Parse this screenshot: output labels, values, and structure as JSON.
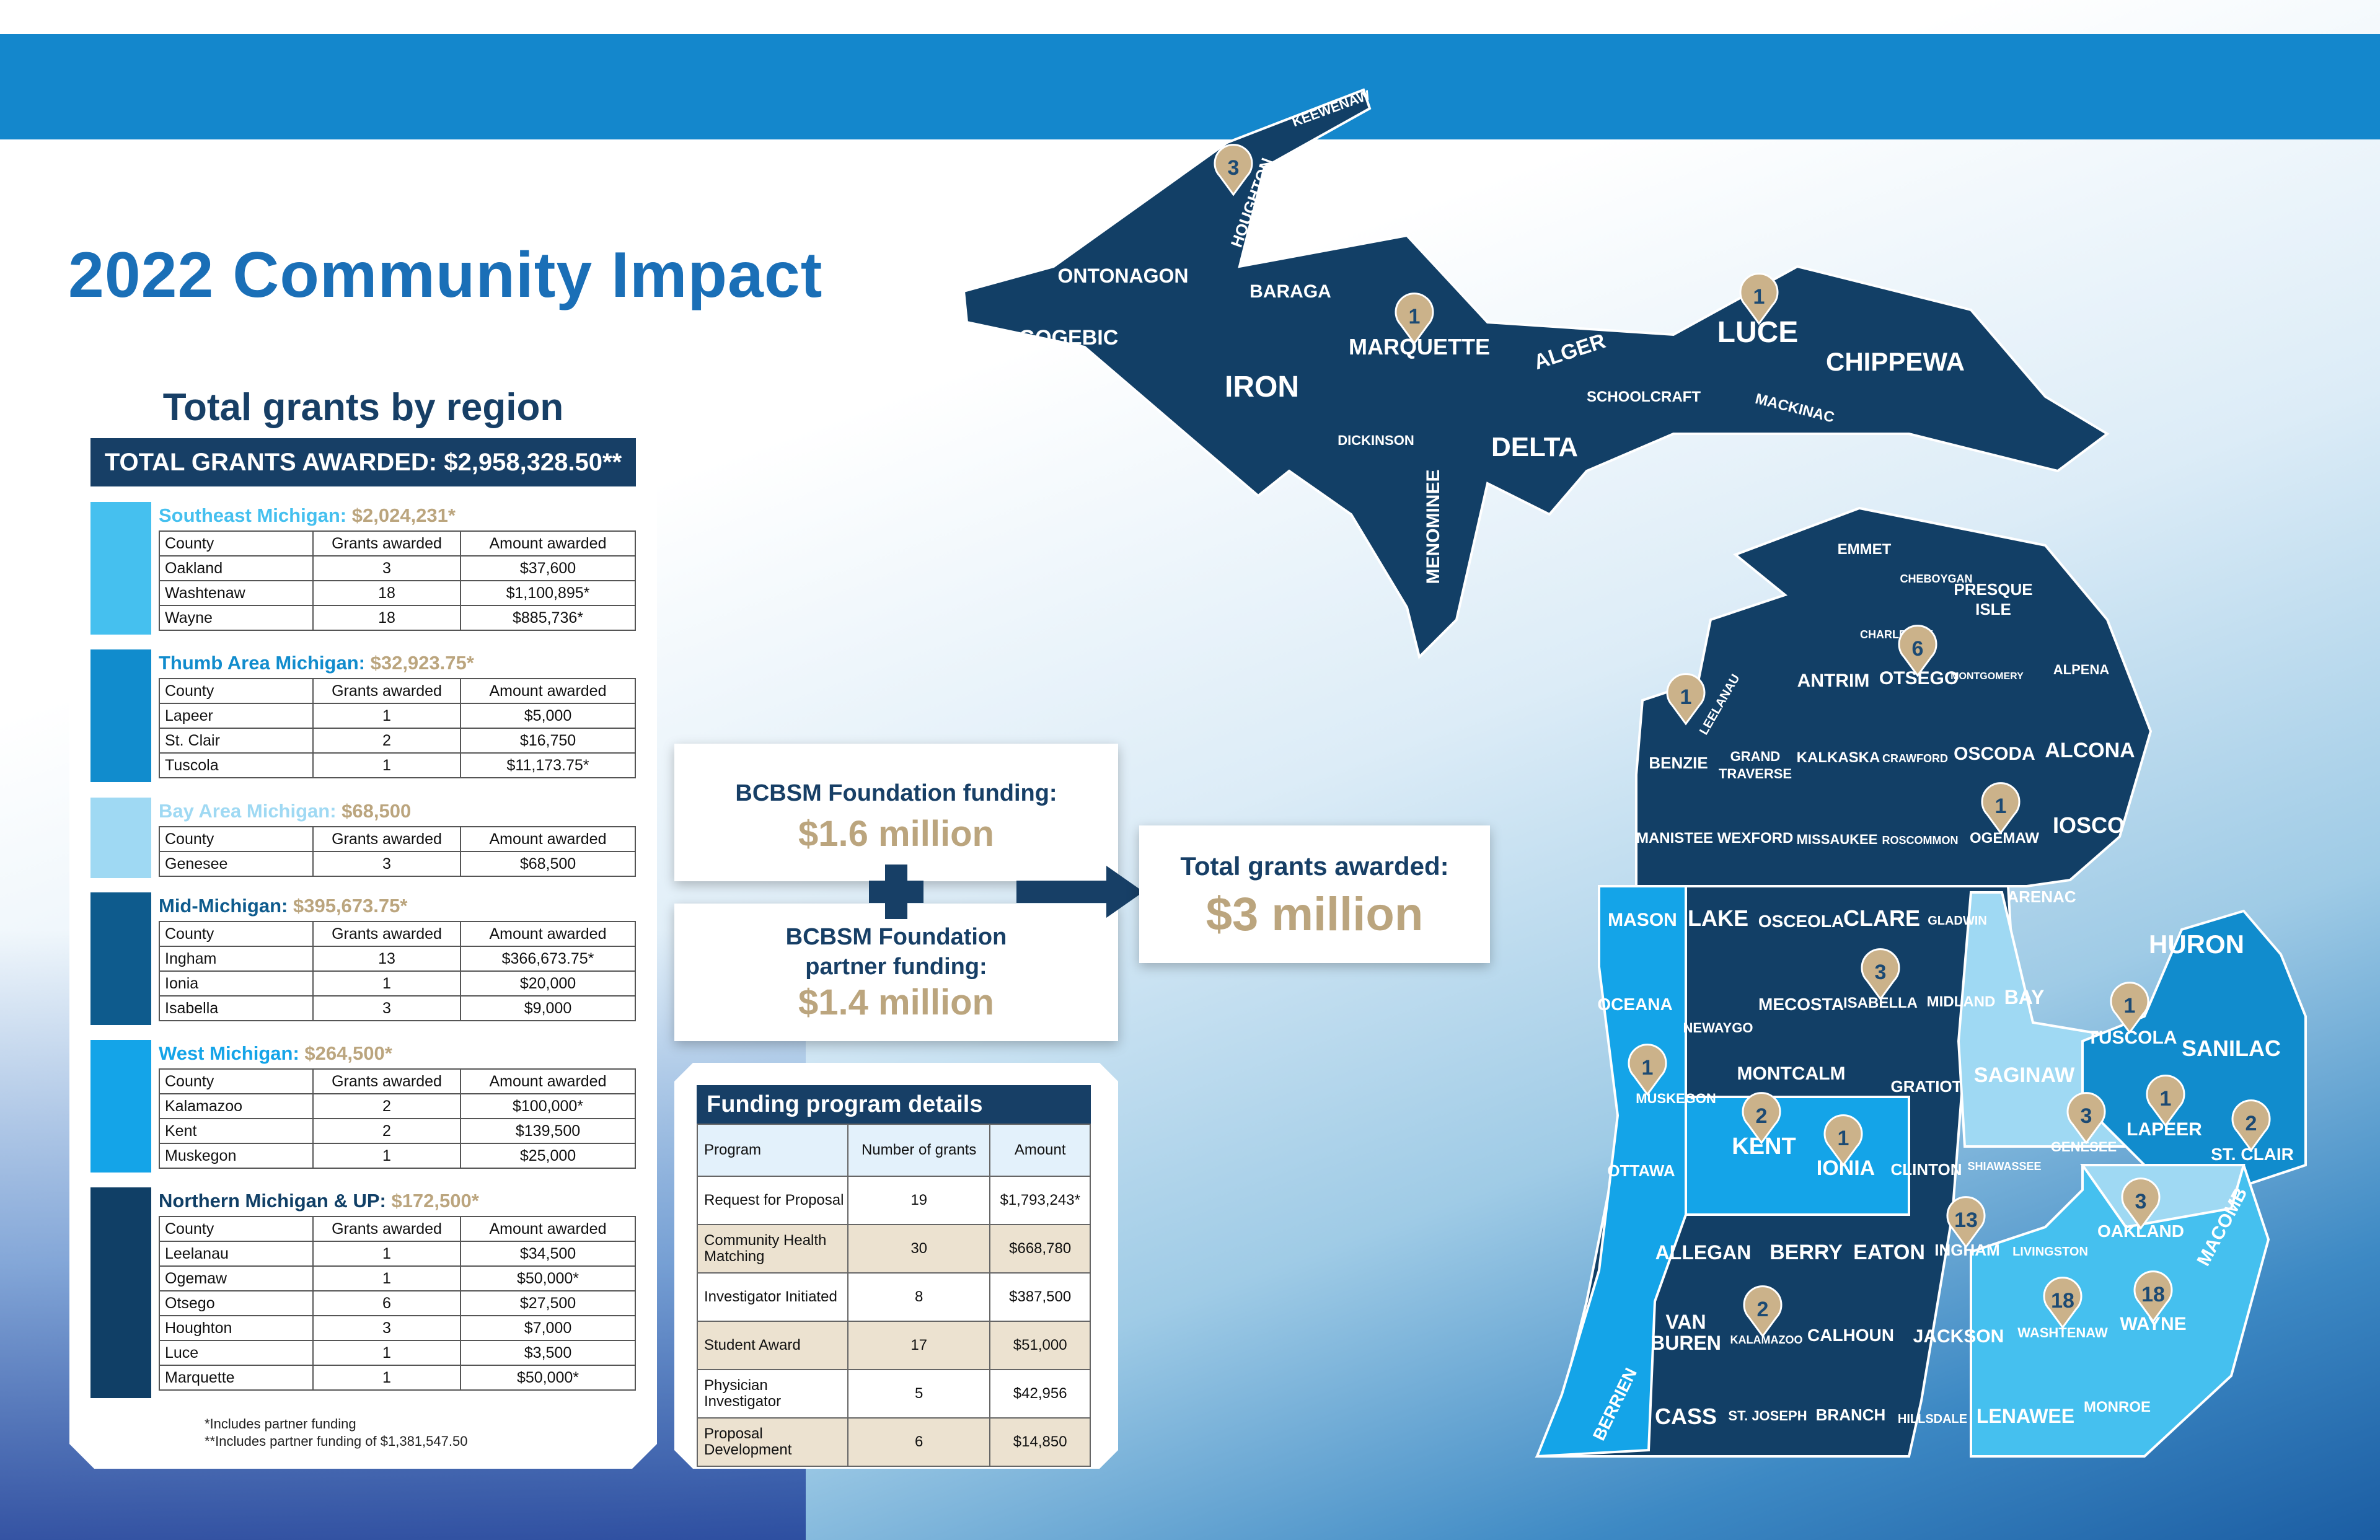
{
  "title": "2022 Community Impact",
  "regions_panel": {
    "title": "Total grants by region",
    "total_label": "TOTAL GRANTS AWARDED: $2,958,328.50**",
    "headers": [
      "County",
      "Grants awarded",
      "Amount awarded"
    ],
    "regions": [
      {
        "name": "Southeast Michigan:",
        "amount": "$2,024,231*",
        "color": "#45c0ef",
        "title_color": "#45c0ef",
        "rows": [
          [
            "Oakland",
            "3",
            "$37,600"
          ],
          [
            "Washtenaw",
            "18",
            "$1,100,895*"
          ],
          [
            "Wayne",
            "18",
            "$885,736*"
          ]
        ]
      },
      {
        "name": "Thumb Area Michigan:",
        "amount": "$32,923.75*",
        "color": "#118ccd",
        "title_color": "#118ccd",
        "rows": [
          [
            "Lapeer",
            "1",
            "$5,000"
          ],
          [
            "St. Clair",
            "2",
            "$16,750"
          ],
          [
            "Tuscola",
            "1",
            "$11,173.75*"
          ]
        ]
      },
      {
        "name": "Bay Area Michigan:",
        "amount": "$68,500",
        "color": "#9fd9f3",
        "title_color": "#9fd9f3",
        "rows": [
          [
            "Genesee",
            "3",
            "$68,500"
          ]
        ]
      },
      {
        "name": "Mid-Michigan:",
        "amount": "$395,673.75*",
        "color": "#0e5b8d",
        "title_color": "#0e5b8d",
        "rows": [
          [
            "Ingham",
            "13",
            "$366,673.75*"
          ],
          [
            "Ionia",
            "1",
            "$20,000"
          ],
          [
            "Isabella",
            "3",
            "$9,000"
          ]
        ]
      },
      {
        "name": "West Michigan:",
        "amount": "$264,500*",
        "color": "#14a4e8",
        "title_color": "#14a4e8",
        "rows": [
          [
            "Kalamazoo",
            "2",
            "$100,000*"
          ],
          [
            "Kent",
            "2",
            "$139,500"
          ],
          [
            "Muskegon",
            "1",
            "$25,000"
          ]
        ]
      },
      {
        "name": "Northern Michigan & UP:",
        "amount": "$172,500*",
        "color": "#103f66",
        "title_color": "#103f66",
        "rows": [
          [
            "Leelanau",
            "1",
            "$34,500"
          ],
          [
            "Ogemaw",
            "1",
            "$50,000*"
          ],
          [
            "Otsego",
            "6",
            "$27,500"
          ],
          [
            "Houghton",
            "3",
            "$7,000"
          ],
          [
            "Luce",
            "1",
            "$3,500"
          ],
          [
            "Marquette",
            "1",
            "$50,000*"
          ]
        ]
      }
    ],
    "footnote1": "*Includes partner funding",
    "footnote2": "**Includes partner funding of $1,381,547.50"
  },
  "funding": {
    "foundation_label": "BCBSM Foundation funding:",
    "foundation_value": "$1.6 million",
    "partner_label_1": "BCBSM Foundation",
    "partner_label_2": "partner funding:",
    "partner_value": "$1.4 million",
    "total_label": "Total grants awarded:",
    "total_value": "$3 million"
  },
  "program_details": {
    "title": "Funding program details",
    "headers": [
      "Program",
      "Number of grants",
      "Amount"
    ],
    "rows": [
      [
        "Request for Proposal",
        "19",
        "$1,793,243*"
      ],
      [
        "Community Health Matching",
        "30",
        "$668,780"
      ],
      [
        "Investigator Initiated",
        "8",
        "$387,500"
      ],
      [
        "Student Award",
        "17",
        "$51,000"
      ],
      [
        "Physician Investigator",
        "5",
        "$42,956"
      ],
      [
        "Proposal Development",
        "6",
        "$14,850"
      ]
    ]
  },
  "map": {
    "colors": {
      "dark": "#123f66",
      "mid": "#0e5e92",
      "thumb": "#118ccd",
      "west": "#14a4e8",
      "bay": "#9fd9f3",
      "se": "#45c0ef",
      "pin": "#cbb28a"
    },
    "counties": [
      "KEEWENAW",
      "HOUGHTON",
      "ONTONAGON",
      "GOGEBIC",
      "BARAGA",
      "IRON",
      "MARQUETTE",
      "DICKINSON",
      "MENOMINEE",
      "ALGER",
      "DELTA",
      "SCHOOLCRAFT",
      "LUCE",
      "MACKINAC",
      "CHIPPEWA",
      "EMMET",
      "CHEBOYGAN",
      "PRESQUE ISLE",
      "CHARLEVOIX",
      "OTSEGO",
      "MONTGOMERY",
      "ALPENA",
      "LEELANAU",
      "ANTRIM",
      "BENZIE",
      "GRAND TRAVERSE",
      "KALKASKA",
      "CRAWFORD",
      "OSCODA",
      "ALCONA",
      "MANISTEE",
      "WEXFORD",
      "MISSAUKEE",
      "ROSCOMMON",
      "OGEMAW",
      "IOSCO",
      "ARENAC",
      "MASON",
      "LAKE",
      "OSCEOLA",
      "CLARE",
      "GLADWIN",
      "HURON",
      "OCEANA",
      "NEWAYGO",
      "MECOSTA",
      "ISABELLA",
      "MIDLAND",
      "BAY",
      "TUSCOLA",
      "SANILAC",
      "MUSKEGON",
      "MONTCALM",
      "GRATIOT",
      "SAGINAW",
      "KENT",
      "IONIA",
      "LAPEER",
      "GENESEE",
      "ST. CLAIR",
      "OTTAWA",
      "CLINTON",
      "SHIAWASSEE",
      "MACOMB",
      "OAKLAND",
      "ALLEGAN",
      "BERRY",
      "EATON",
      "INGHAM",
      "LIVINGSTON",
      "VAN BUREN",
      "KALAMAZOO",
      "CALHOUN",
      "JACKSON",
      "WASHTENAW",
      "WAYNE",
      "BERRIEN",
      "CASS",
      "ST. JOSEPH",
      "BRANCH",
      "HILLSDALE",
      "LENAWEE",
      "MONROE"
    ],
    "pins": [
      {
        "county": "Houghton",
        "count": "3"
      },
      {
        "county": "Marquette",
        "count": "1"
      },
      {
        "county": "Luce",
        "count": "1"
      },
      {
        "county": "Leelanau",
        "count": "1"
      },
      {
        "county": "Otsego",
        "count": "6"
      },
      {
        "county": "Ogemaw",
        "count": "1"
      },
      {
        "county": "Isabella",
        "count": "3"
      },
      {
        "county": "Tuscola",
        "count": "1"
      },
      {
        "county": "Muskegon",
        "count": "1"
      },
      {
        "county": "Kent",
        "count": "2"
      },
      {
        "county": "Ionia",
        "count": "1"
      },
      {
        "county": "Genesee",
        "count": "3"
      },
      {
        "county": "Lapeer",
        "count": "1"
      },
      {
        "county": "St. Clair",
        "count": "2"
      },
      {
        "county": "Oakland",
        "count": "3"
      },
      {
        "county": "Ingham",
        "count": "13"
      },
      {
        "county": "Kalamazoo",
        "count": "2"
      },
      {
        "county": "Washtenaw",
        "count": "18"
      },
      {
        "county": "Wayne",
        "count": "18"
      }
    ]
  }
}
